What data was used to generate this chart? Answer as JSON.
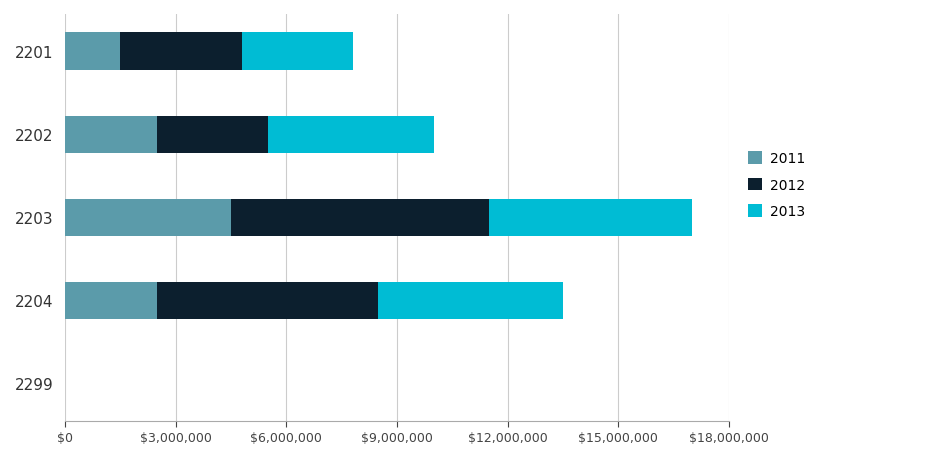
{
  "categories": [
    "2201",
    "2202",
    "2203",
    "2204",
    "2299"
  ],
  "series": {
    "2011": [
      1500000,
      2500000,
      4500000,
      2500000,
      0
    ],
    "2012": [
      3300000,
      3000000,
      7000000,
      6000000,
      0
    ],
    "2013": [
      3000000,
      4500000,
      5500000,
      5000000,
      0
    ]
  },
  "colors": {
    "2011": "#5b9baa",
    "2012": "#0c1f2e",
    "2013": "#00bcd4"
  },
  "legend_labels": [
    "2011",
    "2012",
    "2013"
  ],
  "xlim": [
    0,
    18000000
  ],
  "xticks": [
    0,
    3000000,
    6000000,
    9000000,
    12000000,
    15000000,
    18000000
  ],
  "background_color": "#ffffff",
  "grid_color": "#cccccc",
  "bar_height": 0.45,
  "figsize": [
    9.45,
    4.6
  ],
  "dpi": 100
}
